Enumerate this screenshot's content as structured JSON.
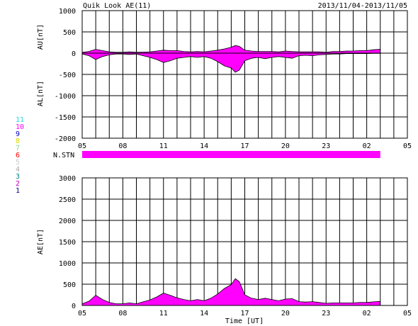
{
  "title": "Quik Look AE(11)",
  "date_range": "2013/11/04-2013/11/05",
  "xlabel": "Time [UT]",
  "nstn_label": "N.STN",
  "stations": [
    {
      "label": "11",
      "color": "#22dddd"
    },
    {
      "label": "10",
      "color": "#ff00ff"
    },
    {
      "label": "9",
      "color": "#0000cc"
    },
    {
      "label": "8",
      "color": "#dddd00"
    },
    {
      "label": "7",
      "color": "#88dd88"
    },
    {
      "label": "6",
      "color": "#ff0000"
    },
    {
      "label": "5",
      "color": "#cccccc"
    },
    {
      "label": "4",
      "color": "#aaaaaa"
    },
    {
      "label": "3",
      "color": "#008888"
    },
    {
      "label": "2",
      "color": "#cc00cc"
    },
    {
      "label": "1",
      "color": "#000088"
    }
  ],
  "chart_data": [
    {
      "type": "area",
      "ylabel_top": "AU[nT]",
      "ylabel_bottom": "AL[nT]",
      "ylim": [
        -2000,
        1000
      ],
      "yticks": [
        "1000",
        "500",
        "0",
        "-500",
        "-1000",
        "-1500",
        "-2000"
      ],
      "xticks": [
        "05",
        "08",
        "11",
        "14",
        "17",
        "20",
        "23",
        "02",
        "05"
      ],
      "xlim_hours_ut": [
        5,
        29
      ],
      "fill_color": "#ff00ff",
      "x_hours_ut": [
        5,
        5.5,
        6,
        6.5,
        7,
        7.5,
        8,
        8.5,
        9,
        9.5,
        10,
        10.5,
        11,
        11.5,
        12,
        12.5,
        13,
        13.5,
        14,
        14.5,
        15,
        15.5,
        16,
        16.3,
        16.6,
        17,
        17.5,
        18,
        18.5,
        19,
        19.5,
        20,
        20.5,
        21,
        21.5,
        22,
        22.5,
        23,
        23.5,
        24,
        24.5,
        25,
        25.5,
        26,
        26.5,
        27
      ],
      "series": [
        {
          "name": "AU",
          "values": [
            20,
            40,
            90,
            60,
            30,
            20,
            20,
            30,
            20,
            25,
            30,
            50,
            70,
            60,
            60,
            40,
            30,
            40,
            30,
            50,
            70,
            100,
            140,
            180,
            160,
            70,
            50,
            40,
            40,
            40,
            30,
            50,
            40,
            30,
            30,
            30,
            30,
            20,
            40,
            40,
            50,
            50,
            60,
            60,
            80,
            90
          ]
        },
        {
          "name": "AL",
          "values": [
            -20,
            -60,
            -150,
            -80,
            -40,
            -20,
            -20,
            -30,
            -20,
            -60,
            -100,
            -150,
            -220,
            -180,
            -120,
            -100,
            -80,
            -100,
            -80,
            -120,
            -200,
            -300,
            -350,
            -450,
            -400,
            -180,
            -120,
            -100,
            -130,
            -100,
            -80,
            -100,
            -120,
            -60,
            -50,
            -60,
            -40,
            -30,
            -20,
            -20,
            -10,
            -10,
            -10,
            -10,
            -5,
            -5
          ]
        }
      ]
    },
    {
      "type": "bar",
      "name": "N.STN",
      "x_hours_ut": [
        5,
        27
      ],
      "values": [
        11,
        11
      ],
      "fill_color": "#ff00ff"
    },
    {
      "type": "area",
      "ylabel": "AE[nT]",
      "ylim": [
        0,
        3000
      ],
      "yticks": [
        "3000",
        "2500",
        "2000",
        "1500",
        "1000",
        "500",
        "0"
      ],
      "xticks": [
        "05",
        "08",
        "11",
        "14",
        "17",
        "20",
        "23",
        "02",
        "05"
      ],
      "xlim_hours_ut": [
        5,
        29
      ],
      "fill_color": "#ff00ff",
      "x_hours_ut": [
        5,
        5.5,
        6,
        6.5,
        7,
        7.5,
        8,
        8.5,
        9,
        9.5,
        10,
        10.5,
        11,
        11.5,
        12,
        12.5,
        13,
        13.5,
        14,
        14.5,
        15,
        15.5,
        16,
        16.3,
        16.6,
        17,
        17.5,
        18,
        18.5,
        19,
        19.5,
        20,
        20.5,
        21,
        21.5,
        22,
        22.5,
        23,
        23.5,
        24,
        24.5,
        25,
        25.5,
        26,
        26.5,
        27
      ],
      "values": [
        40,
        100,
        240,
        140,
        70,
        40,
        40,
        60,
        40,
        85,
        130,
        200,
        290,
        240,
        180,
        140,
        110,
        140,
        110,
        170,
        270,
        400,
        490,
        630,
        560,
        250,
        170,
        140,
        170,
        140,
        110,
        150,
        160,
        90,
        80,
        90,
        70,
        50,
        60,
        60,
        60,
        60,
        70,
        70,
        85,
        95
      ]
    }
  ]
}
